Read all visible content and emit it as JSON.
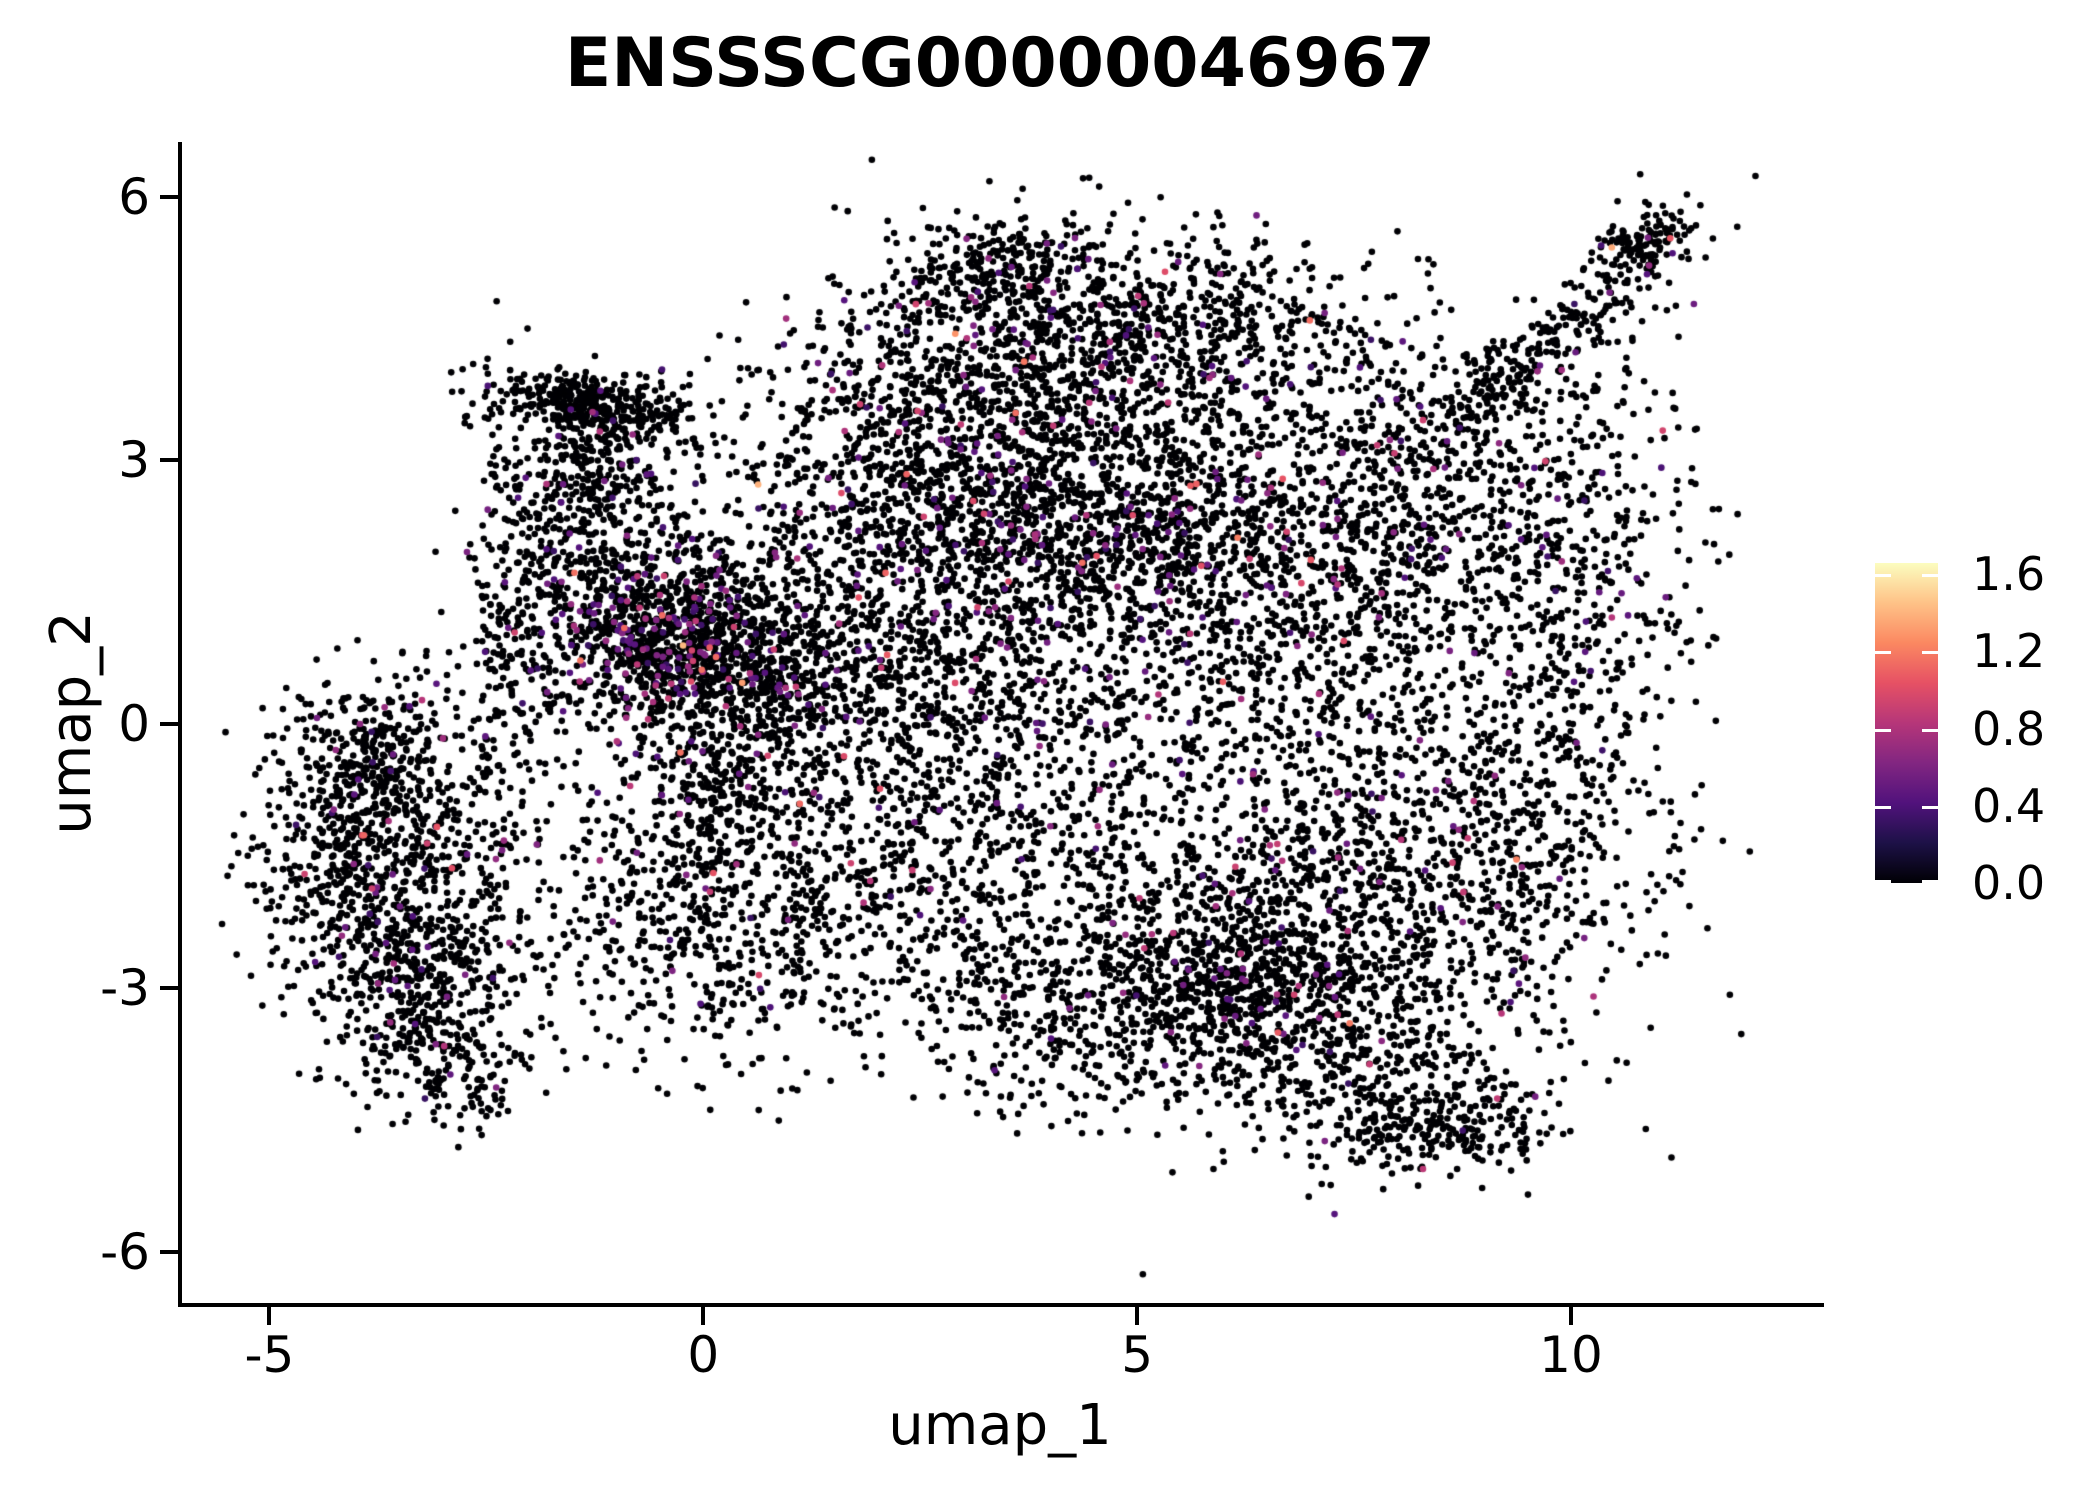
{
  "title": "ENSSSCG00000046967",
  "chart_data": {
    "type": "scatter",
    "subtype": "umap-feature-plot",
    "title": "ENSSSCG00000046967",
    "xlabel": "umap_1",
    "ylabel": "umap_2",
    "xlim": [
      -6.03,
      12.87
    ],
    "ylim": [
      -6.58,
      6.62
    ],
    "x_ticks": [
      -5,
      0,
      5,
      10
    ],
    "x_tick_labels": [
      "-5",
      "0",
      "5",
      "10"
    ],
    "y_ticks": [
      -6,
      -3,
      0,
      3,
      6
    ],
    "y_tick_labels": [
      "-6",
      "-3",
      "0",
      "3",
      "6"
    ],
    "grid": false,
    "background": "#ffffff",
    "axis_color": "#000000",
    "colorbar": {
      "position": "right",
      "colormap": "magma",
      "vmin": 0.0,
      "vmax": 1.657,
      "ticks": [
        0.0,
        0.4,
        0.8,
        1.2,
        1.6
      ],
      "tick_labels": [
        "0.0",
        "0.4",
        "0.8",
        "1.2",
        "1.6"
      ],
      "stops": [
        "#000004",
        "#1D1147",
        "#51127C",
        "#822681",
        "#B63679",
        "#E65164",
        "#FB8861",
        "#FEC287",
        "#FCFDBF"
      ]
    },
    "points": {
      "total_approx": 15300,
      "marker_radius_px": 3.3,
      "zero_expression_color": "#000004",
      "expression_value_range": [
        0.0,
        1.55
      ],
      "clusters": [
        {
          "name": "left-blob-core",
          "cx": -3.9,
          "cy": -1.3,
          "sx": 0.6,
          "sy": 0.78,
          "rot": -20,
          "n": 650,
          "colored": 0.06
        },
        {
          "name": "left-blob-lower",
          "cx": -3.3,
          "cy": -2.9,
          "sx": 0.55,
          "sy": 0.6,
          "rot": -30,
          "n": 430,
          "colored": 0.05
        },
        {
          "name": "left-blob-top",
          "cx": -3.9,
          "cy": -0.25,
          "sx": 0.48,
          "sy": 0.42,
          "rot": 0,
          "n": 170,
          "colored": 0.05
        },
        {
          "name": "left-blob-tip",
          "cx": -2.95,
          "cy": -3.9,
          "sx": 0.42,
          "sy": 0.33,
          "rot": -35,
          "n": 150,
          "colored": 0.03
        },
        {
          "name": "left-gap-sparse",
          "cx": -2.7,
          "cy": -1.4,
          "sx": 0.5,
          "sy": 1.05,
          "rot": 0,
          "n": 170,
          "colored": 0.04
        },
        {
          "name": "left-vert-band",
          "cx": -2.25,
          "cy": 1.1,
          "sx": 0.3,
          "sy": 1.25,
          "rot": 0,
          "n": 230,
          "colored": 0.03
        },
        {
          "name": "upper-left-arm",
          "cx": -1.25,
          "cy": 3.6,
          "sx": 0.62,
          "sy": 0.17,
          "rot": -12,
          "n": 390,
          "colored": 0.02
        },
        {
          "name": "upper-left-arm-blob",
          "cx": -1.3,
          "cy": 2.9,
          "sx": 0.46,
          "sy": 0.4,
          "rot": 0,
          "n": 270,
          "colored": 0.04
        },
        {
          "name": "upper-left-drop",
          "cx": -1.55,
          "cy": 1.95,
          "sx": 0.32,
          "sy": 0.5,
          "rot": 0,
          "n": 150,
          "colored": 0.05
        },
        {
          "name": "centerleft-hotspot",
          "cx": -0.55,
          "cy": 1.05,
          "sx": 0.62,
          "sy": 0.56,
          "rot": -15,
          "n": 860,
          "colored": 0.16
        },
        {
          "name": "centerleft-mid",
          "cx": 0.6,
          "cy": 0.7,
          "sx": 0.78,
          "sy": 0.62,
          "rot": 0,
          "n": 650,
          "colored": 0.09
        },
        {
          "name": "centerleft-low",
          "cx": 0.1,
          "cy": -0.85,
          "sx": 0.88,
          "sy": 0.82,
          "rot": 0,
          "n": 520,
          "colored": 0.05
        },
        {
          "name": "center-bottom-sparse",
          "cx": -0.3,
          "cy": -2.35,
          "sx": 0.95,
          "sy": 0.75,
          "rot": 20,
          "n": 320,
          "colored": 0.04
        },
        {
          "name": "gap-fill-left-top",
          "cx": 1.2,
          "cy": 2.2,
          "sx": 1.3,
          "sy": 1.2,
          "rot": 0,
          "n": 230,
          "colored": 0.05
        },
        {
          "name": "top-cap",
          "cx": 3.3,
          "cy": 5.25,
          "sx": 0.55,
          "sy": 0.28,
          "rot": 10,
          "n": 170,
          "colored": 0.08
        },
        {
          "name": "top-arc",
          "cx": 4.4,
          "cy": 4.55,
          "sx": 1.25,
          "sy": 0.6,
          "rot": 0,
          "n": 760,
          "colored": 0.07
        },
        {
          "name": "top-mid",
          "cx": 4.2,
          "cy": 3.3,
          "sx": 1.6,
          "sy": 0.68,
          "rot": 0,
          "n": 850,
          "colored": 0.06
        },
        {
          "name": "top-left-lobe",
          "cx": 2.3,
          "cy": 3.2,
          "sx": 0.85,
          "sy": 0.85,
          "rot": 0,
          "n": 430,
          "colored": 0.05
        },
        {
          "name": "dense-band",
          "cx": 4.5,
          "cy": 2.0,
          "sx": 1.75,
          "sy": 0.5,
          "rot": -3,
          "n": 980,
          "colored": 0.08
        },
        {
          "name": "mid-bridge",
          "cx": 3.4,
          "cy": 0.9,
          "sx": 1.35,
          "sy": 0.8,
          "rot": 0,
          "n": 600,
          "colored": 0.06
        },
        {
          "name": "center-hole-sparse",
          "cx": 2.4,
          "cy": -0.2,
          "sx": 1.0,
          "sy": 0.8,
          "rot": 0,
          "n": 240,
          "colored": 0.04
        },
        {
          "name": "right-upper",
          "cx": 7.9,
          "cy": 2.0,
          "sx": 1.45,
          "sy": 0.9,
          "rot": 0,
          "n": 820,
          "colored": 0.05
        },
        {
          "name": "upper-right-sparse",
          "cx": 6.8,
          "cy": 4.4,
          "sx": 0.95,
          "sy": 0.6,
          "rot": -20,
          "n": 230,
          "colored": 0.05
        },
        {
          "name": "right-edge-band",
          "cx": 10.2,
          "cy": 1.6,
          "sx": 0.6,
          "sy": 1.35,
          "rot": 0,
          "n": 330,
          "colored": 0.04
        },
        {
          "name": "arm-diagonal",
          "cx": 9.6,
          "cy": 4.2,
          "sx": 1.0,
          "sy": 0.22,
          "rot": 38,
          "n": 240,
          "colored": 0.03
        },
        {
          "name": "arm-tip",
          "cx": 10.85,
          "cy": 5.45,
          "sx": 0.3,
          "sy": 0.2,
          "rot": 30,
          "n": 140,
          "colored": 0.03
        },
        {
          "name": "arm-gap-sparse",
          "cx": 8.9,
          "cy": 3.4,
          "sx": 0.9,
          "sy": 0.6,
          "rot": 30,
          "n": 160,
          "colored": 0.04
        },
        {
          "name": "bottomright-core",
          "cx": 6.8,
          "cy": -2.1,
          "sx": 1.55,
          "sy": 0.95,
          "rot": 0,
          "n": 1150,
          "colored": 0.04
        },
        {
          "name": "bottomright-dense",
          "cx": 6.3,
          "cy": -2.9,
          "sx": 0.85,
          "sy": 0.5,
          "rot": -8,
          "n": 430,
          "colored": 0.04
        },
        {
          "name": "bottomright-right",
          "cx": 9.1,
          "cy": -1.1,
          "sx": 0.9,
          "sy": 1.0,
          "rot": 15,
          "n": 500,
          "colored": 0.03
        },
        {
          "name": "right-mid-fill",
          "cx": 6.4,
          "cy": 0.3,
          "sx": 1.4,
          "sy": 0.75,
          "rot": 0,
          "n": 430,
          "colored": 0.05
        },
        {
          "name": "bottom-slope",
          "cx": 7.6,
          "cy": -3.9,
          "sx": 1.05,
          "sy": 0.45,
          "rot": -10,
          "n": 330,
          "colored": 0.02
        },
        {
          "name": "bottom-tail",
          "cx": 8.45,
          "cy": -4.62,
          "sx": 0.8,
          "sy": 0.27,
          "rot": 6,
          "n": 210,
          "colored": 0.02
        },
        {
          "name": "bottom-center",
          "cx": 4.6,
          "cy": -3.5,
          "sx": 1.15,
          "sy": 0.6,
          "rot": -12,
          "n": 380,
          "colored": 0.03
        },
        {
          "name": "center-low-bridge",
          "cx": 3.3,
          "cy": -1.7,
          "sx": 1.25,
          "sy": 0.95,
          "rot": 0,
          "n": 520,
          "colored": 0.04
        },
        {
          "name": "left-low-haze",
          "cx": 1.5,
          "cy": -2.6,
          "sx": 1.3,
          "sy": 0.9,
          "rot": 25,
          "n": 220,
          "colored": 0.03
        }
      ]
    }
  }
}
